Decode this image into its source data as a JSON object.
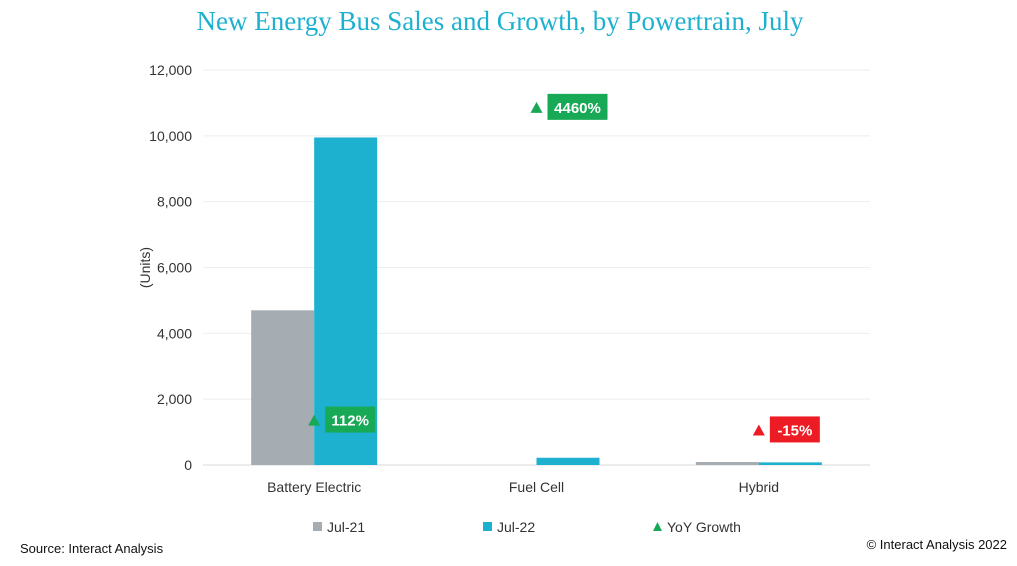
{
  "title": "New Energy Bus Sales and Growth, by Powertrain, July",
  "source": "Source: Interact Analysis",
  "copyright": "© Interact Analysis 2022",
  "chart_data": {
    "type": "bar",
    "ylabel": "(Units)",
    "ylim": [
      0,
      12000
    ],
    "yticks": [
      "0",
      "2,000",
      "4,000",
      "6,000",
      "8,000",
      "10,000",
      "12,000"
    ],
    "ytick_values": [
      0,
      2000,
      4000,
      6000,
      8000,
      10000,
      12000
    ],
    "categories": [
      "Battery Electric",
      "Fuel Cell",
      "Hybrid"
    ],
    "series": [
      {
        "name": "Jul-21",
        "values": [
          4700,
          0,
          90
        ],
        "color": "#a5acb2"
      },
      {
        "name": "Jul-22",
        "values": [
          9950,
          220,
          80
        ],
        "color": "#1eb1cf"
      }
    ],
    "growth": {
      "name": "YoY Growth",
      "labels": [
        "112%",
        "4460%",
        "-15%"
      ],
      "marker_values": [
        1350,
        10850,
        1050
      ],
      "colors": [
        "#18a957",
        "#18a957",
        "#ed1c24"
      ]
    },
    "grid": true,
    "legend": "bottom"
  }
}
